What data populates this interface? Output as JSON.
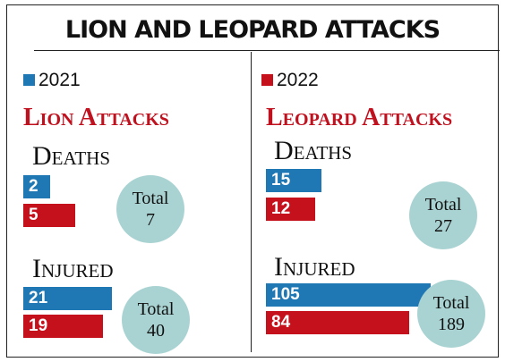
{
  "title": "LION AND LEOPARD ATTACKS",
  "legend": [
    {
      "label": "2021",
      "color": "#1f78b4"
    },
    {
      "label": "2022",
      "color": "#c4111b"
    }
  ],
  "colors": {
    "y2021": "#1f78b4",
    "y2022": "#c4111b",
    "total_bubble": "#a9d3d2",
    "heading": "#c0111f"
  },
  "lion": {
    "heading": "Lion Attacks",
    "deaths": {
      "label": "Deaths",
      "v2021": "2",
      "v2022": "5",
      "total_label": "Total",
      "total": "7"
    },
    "injured": {
      "label": "Injured",
      "v2021": "21",
      "v2022": "19",
      "total_label": "Total",
      "total": "40"
    }
  },
  "leopard": {
    "heading": "Leopard Attacks",
    "deaths": {
      "label": "Deaths",
      "v2021": "15",
      "v2022": "12",
      "total_label": "Total",
      "total": "27"
    },
    "injured": {
      "label": "Injured",
      "v2021": "105",
      "v2022": "84",
      "total_label": "Total",
      "total": "189"
    }
  },
  "chart_data": {
    "type": "bar",
    "title": "LION AND LEOPARD ATTACKS",
    "categories": [
      "Lion Deaths",
      "Lion Injured",
      "Leopard Deaths",
      "Leopard Injured"
    ],
    "series": [
      {
        "name": "2021",
        "values": [
          2,
          21,
          15,
          105
        ]
      },
      {
        "name": "2022",
        "values": [
          5,
          19,
          12,
          84
        ]
      }
    ],
    "totals": [
      7,
      40,
      27,
      189
    ],
    "legend": "top"
  }
}
